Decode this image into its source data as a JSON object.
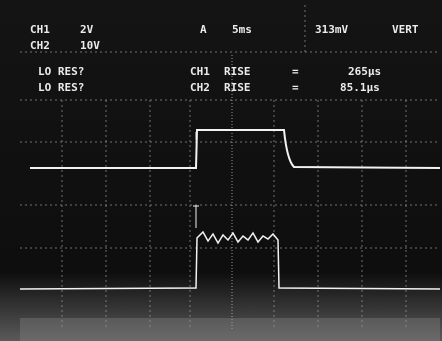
{
  "header": {
    "ch1_label": "CH1",
    "ch1_scale": "2V",
    "ch2_label": "CH2",
    "ch2_scale": "10V",
    "trigger": "A",
    "timebase": "5ms",
    "trigger_level": "313mV",
    "mode": "VERT"
  },
  "readouts": [
    {
      "status": "LO RES?",
      "channel": "CH1",
      "param": "RISE",
      "eq": "=",
      "value": "265µs"
    },
    {
      "status": "LO RES?",
      "channel": "CH2",
      "param": "RISE",
      "eq": "=",
      "value": "85.1µs"
    }
  ]
}
